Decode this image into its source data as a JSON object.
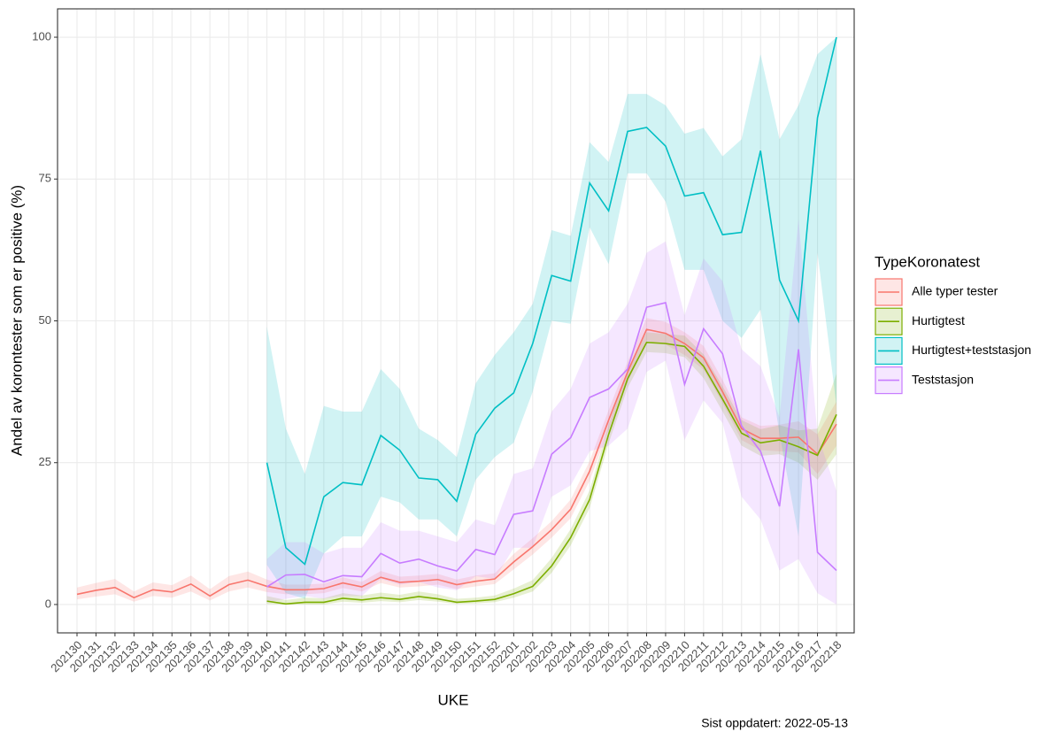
{
  "chart_data": {
    "type": "line",
    "x_label": "UKE",
    "y_label": "Andel av korontester som er positive (%)",
    "legend_title": "TypeKoronatest",
    "caption": "Sist oppdatert: 2022-05-13",
    "categories": [
      "202130",
      "202131",
      "202132",
      "202133",
      "202134",
      "202135",
      "202136",
      "202137",
      "202138",
      "202139",
      "202140",
      "202141",
      "202142",
      "202143",
      "202144",
      "202145",
      "202146",
      "202147",
      "202148",
      "202149",
      "202150",
      "202151",
      "202152",
      "202201",
      "202202",
      "202203",
      "202204",
      "202205",
      "202206",
      "202207",
      "202208",
      "202209",
      "202210",
      "202211",
      "202212",
      "202213",
      "202214",
      "202215",
      "202216",
      "202217",
      "202218"
    ],
    "ylim": [
      -5,
      105
    ],
    "yticks": [
      0,
      25,
      50,
      75,
      100
    ],
    "grid": true,
    "legend_position": "right",
    "series": [
      {
        "name": "Alle typer tester",
        "color": "#F8766D",
        "values": [
          1.8,
          2.5,
          3.0,
          1.2,
          2.6,
          2.2,
          3.6,
          1.5,
          3.5,
          4.3,
          3.2,
          2.6,
          2.6,
          2.8,
          3.8,
          3.1,
          4.8,
          3.9,
          4.1,
          4.4,
          3.5,
          4.1,
          4.5,
          7.5,
          10.2,
          13.2,
          16.8,
          23.5,
          32.5,
          41,
          48.5,
          47.8,
          46,
          43.5,
          37.5,
          31,
          29.3,
          29.3,
          29.5,
          26.5,
          31.8
        ],
        "lower": [
          0.9,
          1.4,
          1.8,
          0.5,
          1.5,
          1.2,
          2.3,
          0.7,
          2.3,
          3.0,
          2.2,
          1.8,
          1.8,
          2.0,
          2.9,
          2.3,
          3.8,
          3.0,
          3.2,
          3.5,
          2.7,
          3.2,
          3.6,
          6.2,
          8.8,
          11.8,
          15.2,
          21.8,
          30.8,
          39.2,
          46.5,
          45.8,
          44,
          41.4,
          35.5,
          29,
          27.2,
          27,
          26.8,
          23,
          28
        ],
        "upper": [
          3.0,
          3.8,
          4.5,
          2.3,
          3.9,
          3.4,
          5.1,
          2.7,
          5.0,
          5.8,
          4.4,
          3.5,
          3.5,
          3.7,
          4.8,
          4.0,
          5.9,
          4.9,
          5.1,
          5.4,
          4.4,
          5.1,
          5.5,
          8.9,
          11.7,
          14.7,
          18.5,
          25.3,
          34.3,
          42.8,
          50.5,
          49.8,
          48,
          45.6,
          39.6,
          33,
          31.5,
          31.7,
          32.3,
          30,
          35.8
        ]
      },
      {
        "name": "Hurtigtest",
        "color": "#7CAE00",
        "values": [
          null,
          null,
          null,
          null,
          null,
          null,
          null,
          null,
          null,
          null,
          0.6,
          0.1,
          0.4,
          0.4,
          1.1,
          0.8,
          1.2,
          0.9,
          1.4,
          1.0,
          0.4,
          0.6,
          0.9,
          1.9,
          3.2,
          6.8,
          11.8,
          18.5,
          30,
          39.8,
          46.2,
          46,
          45.5,
          42,
          36.2,
          30.2,
          28.5,
          29,
          27.8,
          26.3,
          33.5
        ],
        "lower": [
          null,
          null,
          null,
          null,
          null,
          null,
          null,
          null,
          null,
          null,
          0.1,
          0,
          0,
          0,
          0.5,
          0.3,
          0.6,
          0.4,
          0.8,
          0.5,
          0.1,
          0.2,
          0.4,
          1.2,
          2.3,
          5.6,
          10.4,
          17,
          28.4,
          38.2,
          44.5,
          44.3,
          43.6,
          39.9,
          34,
          28,
          26.2,
          26.5,
          25,
          22,
          26.5
        ],
        "upper": [
          null,
          null,
          null,
          null,
          null,
          null,
          null,
          null,
          null,
          null,
          1.5,
          0.8,
          1.2,
          1.1,
          2.0,
          1.6,
          2.1,
          1.7,
          2.3,
          1.8,
          1.0,
          1.2,
          1.6,
          2.8,
          4.3,
          8.2,
          13.3,
          20.1,
          31.7,
          41.4,
          48,
          47.7,
          47.4,
          44.1,
          38.5,
          32.5,
          30.9,
          31.6,
          30.7,
          31,
          40.7
        ]
      },
      {
        "name": "Hurtigtest+teststasjon",
        "color": "#00BFC4",
        "values": [
          null,
          null,
          null,
          null,
          null,
          null,
          null,
          null,
          null,
          null,
          25,
          10,
          7.1,
          19,
          21.5,
          21.1,
          29.8,
          27.2,
          22.3,
          22,
          18.2,
          30,
          34.6,
          37.3,
          46,
          58,
          57,
          74.3,
          69.4,
          83.4,
          84.1,
          80.8,
          72,
          72.6,
          65.2,
          65.6,
          80,
          57.2,
          50,
          85.8,
          100
        ],
        "lower": [
          null,
          null,
          null,
          null,
          null,
          null,
          null,
          null,
          null,
          null,
          7,
          2,
          1,
          9,
          12,
          12,
          19,
          18,
          15,
          15,
          12,
          22,
          26,
          28.5,
          37.5,
          50,
          49.5,
          66.5,
          60,
          76,
          76,
          71,
          59,
          59,
          50,
          47,
          52,
          30,
          12,
          62,
          35
        ],
        "upper": [
          null,
          null,
          null,
          null,
          null,
          null,
          null,
          null,
          null,
          null,
          49,
          31,
          23,
          35,
          34,
          34,
          41.5,
          38,
          31,
          29,
          26,
          39,
          44,
          48,
          53,
          66,
          65,
          81.5,
          78,
          90,
          90,
          88,
          83,
          84,
          79,
          82,
          97,
          82,
          88,
          97,
          100
        ]
      },
      {
        "name": "Teststasjon",
        "color": "#C77CFF",
        "values": [
          null,
          null,
          null,
          null,
          null,
          null,
          null,
          null,
          null,
          null,
          3.1,
          5.2,
          5.3,
          4,
          5.1,
          4.9,
          9,
          7.3,
          8,
          6.8,
          5.9,
          9.7,
          8.8,
          15.9,
          16.5,
          26.5,
          29.4,
          36.5,
          38,
          41.5,
          52.4,
          53.2,
          38.8,
          48.6,
          44.2,
          31.5,
          27,
          17.3,
          45,
          9.2,
          6
        ],
        "lower": [
          null,
          null,
          null,
          null,
          null,
          null,
          null,
          null,
          null,
          null,
          0.3,
          1,
          1.5,
          1,
          1.5,
          1.5,
          4.5,
          3.5,
          4,
          3,
          2.5,
          5,
          4.5,
          10,
          10,
          19,
          21,
          27,
          28,
          31,
          41,
          43,
          29,
          36,
          32,
          19,
          15,
          6,
          8,
          2,
          0
        ],
        "upper": [
          null,
          null,
          null,
          null,
          null,
          null,
          null,
          null,
          null,
          null,
          8,
          11,
          11,
          9,
          10,
          10,
          14.5,
          13,
          13,
          12,
          11,
          15,
          14,
          23,
          24,
          34,
          38,
          46,
          48,
          53,
          62,
          64,
          51,
          61,
          57,
          45,
          42,
          33,
          68,
          30,
          20
        ]
      }
    ]
  }
}
